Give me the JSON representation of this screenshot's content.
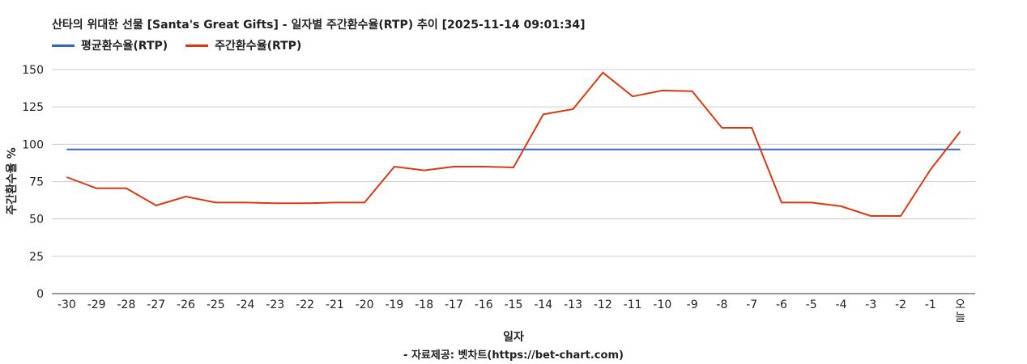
{
  "chart_data": {
    "type": "line",
    "title": "산타의 위대한 선물 [Santa's Great Gifts] - 일자별 주간환수율(RTP) 추이 [2025-11-14 09:01:34]",
    "xlabel": "일자",
    "ylabel": "주간환수율 %",
    "source": "- 자료제공: 벳차트(https://bet-chart.com)",
    "ylim": [
      0,
      150
    ],
    "yticks": [
      "0",
      "25",
      "50",
      "75",
      "100",
      "125",
      "150"
    ],
    "categories": [
      "-30",
      "-29",
      "-28",
      "-27",
      "-26",
      "-25",
      "-24",
      "-23",
      "-22",
      "-21",
      "-20",
      "-19",
      "-18",
      "-17",
      "-16",
      "-15",
      "-14",
      "-13",
      "-12",
      "-11",
      "-10",
      "-9",
      "-8",
      "-7",
      "-6",
      "-5",
      "-4",
      "-3",
      "-2",
      "-1",
      "오늘"
    ],
    "legend_position": "top-left",
    "grid": true,
    "series": [
      {
        "name": "평균환수율(RTP)",
        "color": "#3366cc",
        "values": [
          96.5,
          96.5,
          96.5,
          96.5,
          96.5,
          96.5,
          96.5,
          96.5,
          96.5,
          96.5,
          96.5,
          96.5,
          96.5,
          96.5,
          96.5,
          96.5,
          96.5,
          96.5,
          96.5,
          96.5,
          96.5,
          96.5,
          96.5,
          96.5,
          96.5,
          96.5,
          96.5,
          96.5,
          96.5,
          96.5,
          96.5
        ]
      },
      {
        "name": "주간환수율(RTP)",
        "color": "#dc3912",
        "values": [
          78,
          70.5,
          70.5,
          59,
          65,
          61,
          61,
          60.5,
          60.5,
          61,
          61,
          85,
          82.5,
          85,
          85,
          84.5,
          120,
          123.5,
          148,
          132,
          136,
          135.5,
          111,
          111,
          61,
          61,
          58.5,
          52,
          52,
          83,
          108.5
        ]
      }
    ]
  }
}
